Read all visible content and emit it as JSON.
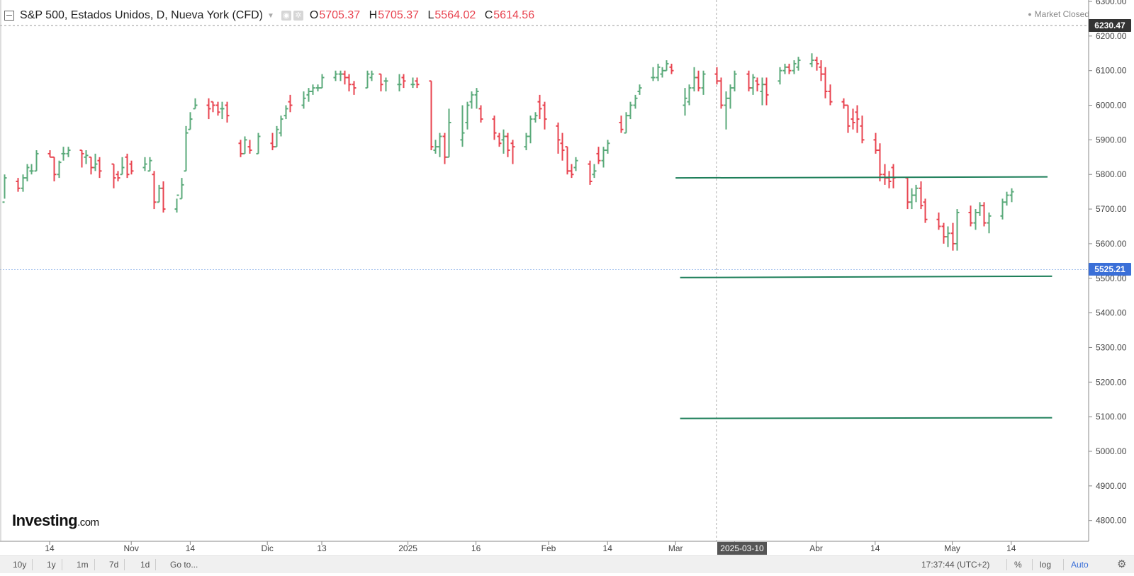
{
  "legend": {
    "title": "S&P 500, Estados Unidos, D, Nueva York (CFD)",
    "open_label": "O",
    "open_value": "5705.37",
    "high_label": "H",
    "high_value": "5705.37",
    "low_label": "L",
    "low_value": "5564.02",
    "close_label": "C",
    "close_value": "5614.56"
  },
  "market_status": "Market Closed",
  "logo": {
    "name": "Investing",
    "suffix": ".com"
  },
  "price_tags": {
    "top": "6230.47",
    "current": "5525.21"
  },
  "crosshair_date": "2025-03-10",
  "bottom_bar": {
    "ranges": [
      "10y",
      "1y",
      "1m",
      "7d",
      "1d"
    ],
    "goto": "Go to...",
    "clock": "17:37:44 (UTC+2)",
    "percent": "%",
    "log": "log",
    "auto": "Auto"
  },
  "colors": {
    "up": "#5aaa7a",
    "down": "#e8434f",
    "trendline": "#1e7f5a",
    "accent": "#3a6fd8"
  },
  "chart_data": {
    "type": "ohlc",
    "title": "S&P 500, Estados Unidos, D, Nueva York (CFD)",
    "ylim": [
      4740,
      6300
    ],
    "y_ticks": [
      6300,
      6200,
      6100,
      6000,
      5900,
      5800,
      5700,
      5600,
      5500,
      5400,
      5300,
      5200,
      5100,
      5000,
      4900,
      4800
    ],
    "y_tick_labels": [
      "6300.00",
      "6200.00",
      "6100.00",
      "6000.00",
      "5900.00",
      "5800.00",
      "5700.00",
      "5600.00",
      "5500.00",
      "5400.00",
      "5300.00",
      "5200.00",
      "5100.00",
      "5000.00",
      "4900.00",
      "4800.00"
    ],
    "x_ticks": [
      {
        "label": "14",
        "date": "2024-10-14"
      },
      {
        "label": "Nov",
        "date": "2024-11-01"
      },
      {
        "label": "14",
        "date": "2024-11-14"
      },
      {
        "label": "Dic",
        "date": "2024-12-01"
      },
      {
        "label": "13",
        "date": "2024-12-13"
      },
      {
        "label": "2025",
        "date": "2025-01-01"
      },
      {
        "label": "16",
        "date": "2025-01-16"
      },
      {
        "label": "Feb",
        "date": "2025-02-01"
      },
      {
        "label": "14",
        "date": "2025-02-14"
      },
      {
        "label": "Mar",
        "date": "2025-03-01"
      },
      {
        "label": "14",
        "date": "2025-03-14"
      },
      {
        "label": "Abr",
        "date": "2025-04-01"
      },
      {
        "label": "14",
        "date": "2025-04-14"
      },
      {
        "label": "May",
        "date": "2025-05-01"
      },
      {
        "label": "14",
        "date": "2025-05-14"
      }
    ],
    "bars": [
      [
        "2024-10-04",
        5720,
        5800,
        5730,
        5790
      ],
      [
        "2024-10-07",
        5780,
        5790,
        5750,
        5760
      ],
      [
        "2024-10-08",
        5760,
        5800,
        5750,
        5790
      ],
      [
        "2024-10-09",
        5790,
        5830,
        5780,
        5820
      ],
      [
        "2024-10-10",
        5810,
        5830,
        5800,
        5810
      ],
      [
        "2024-10-11",
        5810,
        5870,
        5810,
        5860
      ],
      [
        "2024-10-14",
        5860,
        5870,
        5850,
        5850
      ],
      [
        "2024-10-15",
        5850,
        5850,
        5780,
        5800
      ],
      [
        "2024-10-16",
        5800,
        5840,
        5790,
        5835
      ],
      [
        "2024-10-17",
        5860,
        5880,
        5840,
        5860
      ],
      [
        "2024-10-18",
        5860,
        5880,
        5850,
        5870
      ],
      [
        "2024-10-21",
        5870,
        5870,
        5820,
        5860
      ],
      [
        "2024-10-22",
        5850,
        5870,
        5830,
        5855
      ],
      [
        "2024-10-23",
        5850,
        5850,
        5800,
        5820
      ],
      [
        "2024-10-24",
        5820,
        5860,
        5810,
        5830
      ],
      [
        "2024-10-25",
        5840,
        5850,
        5790,
        5810
      ],
      [
        "2024-10-28",
        5830,
        5830,
        5760,
        5790
      ],
      [
        "2024-10-29",
        5800,
        5810,
        5780,
        5790
      ],
      [
        "2024-10-30",
        5800,
        5850,
        5800,
        5820
      ],
      [
        "2024-10-31",
        5850,
        5860,
        5790,
        5800
      ],
      [
        "2024-11-01",
        5830,
        5840,
        5800,
        5810
      ],
      [
        "2024-11-04",
        5820,
        5850,
        5810,
        5830
      ],
      [
        "2024-11-05",
        5810,
        5850,
        5810,
        5840
      ],
      [
        "2024-11-06",
        5800,
        5810,
        5700,
        5720
      ],
      [
        "2024-11-07",
        5720,
        5770,
        5720,
        5760
      ],
      [
        "2024-11-08",
        5760,
        5780,
        5690,
        5700
      ],
      [
        "2024-11-11",
        5700,
        5730,
        5690,
        5740
      ],
      [
        "2024-11-12",
        5730,
        5790,
        5730,
        5770
      ],
      [
        "2024-11-13",
        5810,
        5940,
        5810,
        5920
      ],
      [
        "2024-11-14",
        5930,
        5980,
        5930,
        5960
      ],
      [
        "2024-11-15",
        5990,
        6020,
        5990,
        6000
      ],
      [
        "2024-11-18",
        6000,
        6020,
        5960,
        5990
      ],
      [
        "2024-11-19",
        6010,
        6010,
        5980,
        6000
      ],
      [
        "2024-11-20",
        6000,
        6010,
        5970,
        5980
      ],
      [
        "2024-11-21",
        5990,
        6010,
        5960,
        5990
      ],
      [
        "2024-11-22",
        6000,
        6010,
        5950,
        5970
      ],
      [
        "2024-11-25",
        5890,
        5900,
        5850,
        5860
      ],
      [
        "2024-11-26",
        5860,
        5910,
        5860,
        5900
      ],
      [
        "2024-11-27",
        5880,
        5900,
        5860,
        5870
      ],
      [
        "2024-11-29",
        5860,
        5920,
        5860,
        5910
      ],
      [
        "2024-12-02",
        5890,
        5920,
        5870,
        5880
      ],
      [
        "2024-12-03",
        5880,
        5940,
        5880,
        5930
      ],
      [
        "2024-12-04",
        5920,
        5970,
        5910,
        5960
      ],
      [
        "2024-12-05",
        5970,
        6000,
        5960,
        5990
      ],
      [
        "2024-12-06",
        6010,
        6030,
        5980,
        6000
      ],
      [
        "2024-12-09",
        6000,
        6040,
        5990,
        6020
      ],
      [
        "2024-12-10",
        6030,
        6050,
        6010,
        6040
      ],
      [
        "2024-12-11",
        6040,
        6060,
        6030,
        6050
      ],
      [
        "2024-12-12",
        6050,
        6060,
        6040,
        6050
      ],
      [
        "2024-12-13",
        6050,
        6090,
        6050,
        6080
      ],
      [
        "2024-12-16",
        6080,
        6100,
        6070,
        6090
      ],
      [
        "2024-12-17",
        6090,
        6100,
        6070,
        6090
      ],
      [
        "2024-12-18",
        6090,
        6100,
        6060,
        6080
      ],
      [
        "2024-12-19",
        6080,
        6090,
        6040,
        6060
      ],
      [
        "2024-12-20",
        6060,
        6070,
        6030,
        6050
      ],
      [
        "2024-12-23",
        6050,
        6100,
        6050,
        6090
      ],
      [
        "2024-12-24",
        6080,
        6100,
        6070,
        6090
      ],
      [
        "2024-12-26",
        6090,
        6090,
        6040,
        6060
      ],
      [
        "2024-12-27",
        6070,
        6080,
        6040,
        6070
      ],
      [
        "2024-12-30",
        6060,
        6090,
        6040,
        6060
      ],
      [
        "2024-12-31",
        6080,
        6090,
        6050,
        6070
      ],
      [
        "2025-01-02",
        6060,
        6080,
        6050,
        6060
      ],
      [
        "2025-01-03",
        6070,
        6080,
        6050,
        6060
      ],
      [
        "2025-01-06",
        6070,
        6070,
        5870,
        5880
      ],
      [
        "2025-01-07",
        5870,
        5900,
        5860,
        5880
      ],
      [
        "2025-01-08",
        5880,
        5920,
        5850,
        5910
      ],
      [
        "2025-01-09",
        5910,
        5920,
        5830,
        5850
      ],
      [
        "2025-01-10",
        5850,
        5990,
        5850,
        5950
      ],
      [
        "2025-01-13",
        5900,
        6000,
        5880,
        5920
      ],
      [
        "2025-01-14",
        5950,
        6010,
        5930,
        6000
      ],
      [
        "2025-01-15",
        6010,
        6040,
        5990,
        6030
      ],
      [
        "2025-01-16",
        6030,
        6050,
        5990,
        6040
      ],
      [
        "2025-01-17",
        5990,
        6000,
        5950,
        5960
      ],
      [
        "2025-01-20",
        5960,
        5970,
        5900,
        5920
      ],
      [
        "2025-01-21",
        5910,
        5920,
        5880,
        5890
      ],
      [
        "2025-01-22",
        5900,
        5930,
        5860,
        5910
      ],
      [
        "2025-01-23",
        5910,
        5920,
        5850,
        5870
      ],
      [
        "2025-01-24",
        5890,
        5900,
        5830,
        5880
      ],
      [
        "2025-01-27",
        5880,
        5920,
        5870,
        5910
      ],
      [
        "2025-01-28",
        5910,
        5970,
        5890,
        5960
      ],
      [
        "2025-01-29",
        5960,
        5980,
        5950,
        5970
      ],
      [
        "2025-01-30",
        6010,
        6030,
        5960,
        5990
      ],
      [
        "2025-01-31",
        6000,
        6010,
        5930,
        5960
      ],
      [
        "2025-02-03",
        5940,
        5950,
        5860,
        5900
      ],
      [
        "2025-02-04",
        5890,
        5920,
        5840,
        5870
      ],
      [
        "2025-02-05",
        5880,
        5880,
        5800,
        5810
      ],
      [
        "2025-02-06",
        5810,
        5830,
        5790,
        5800
      ],
      [
        "2025-02-07",
        5820,
        5850,
        5810,
        5840
      ],
      [
        "2025-02-10",
        5830,
        5840,
        5770,
        5780
      ],
      [
        "2025-02-11",
        5800,
        5830,
        5790,
        5810
      ],
      [
        "2025-02-12",
        5860,
        5880,
        5830,
        5840
      ],
      [
        "2025-02-13",
        5840,
        5880,
        5820,
        5870
      ],
      [
        "2025-02-14",
        5870,
        5900,
        5860,
        5890
      ],
      [
        "2025-02-17",
        5950,
        5970,
        5920,
        5930
      ],
      [
        "2025-02-18",
        5920,
        5980,
        5920,
        5970
      ],
      [
        "2025-02-19",
        5970,
        6010,
        5960,
        6000
      ],
      [
        "2025-02-20",
        6000,
        6030,
        5990,
        6020
      ],
      [
        "2025-02-21",
        6040,
        6060,
        6030,
        6050
      ],
      [
        "2025-02-24",
        6080,
        6110,
        6070,
        6080
      ],
      [
        "2025-02-25",
        6080,
        6120,
        6070,
        6110
      ],
      [
        "2025-02-26",
        6090,
        6110,
        6080,
        6100
      ],
      [
        "2025-02-27",
        6100,
        6130,
        6100,
        6120
      ],
      [
        "2025-02-28",
        6110,
        6120,
        6090,
        6100
      ],
      [
        "2025-03-03",
        6000,
        6050,
        5970,
        6020
      ],
      [
        "2025-03-04",
        6010,
        6060,
        6000,
        6050
      ],
      [
        "2025-03-05",
        6050,
        6110,
        6040,
        6080
      ],
      [
        "2025-03-06",
        6080,
        6100,
        6040,
        6050
      ],
      [
        "2025-03-07",
        6050,
        6100,
        6030,
        6090
      ],
      [
        "2025-03-10",
        6090,
        6110,
        6060,
        6070
      ],
      [
        "2025-03-11",
        6070,
        6080,
        5990,
        6000
      ],
      [
        "2025-03-12",
        6000,
        6040,
        5930,
        6020
      ],
      [
        "2025-03-13",
        6020,
        6060,
        5990,
        6050
      ],
      [
        "2025-03-14",
        6050,
        6100,
        6040,
        6090
      ],
      [
        "2025-03-17",
        6090,
        6100,
        6040,
        6050
      ],
      [
        "2025-03-18",
        6050,
        6090,
        6030,
        6080
      ],
      [
        "2025-03-19",
        6070,
        6080,
        6040,
        6060
      ],
      [
        "2025-03-20",
        6040,
        6080,
        6000,
        6060
      ],
      [
        "2025-03-21",
        6060,
        6080,
        6000,
        6030
      ],
      [
        "2025-03-24",
        6070,
        6110,
        6060,
        6100
      ],
      [
        "2025-03-25",
        6100,
        6120,
        6090,
        6110
      ],
      [
        "2025-03-26",
        6110,
        6120,
        6090,
        6100
      ],
      [
        "2025-03-27",
        6100,
        6130,
        6090,
        6120
      ],
      [
        "2025-03-28",
        6110,
        6140,
        6100,
        6130
      ],
      [
        "2025-03-31",
        6120,
        6150,
        6110,
        6130
      ],
      [
        "2025-04-01",
        6130,
        6140,
        6100,
        6120
      ],
      [
        "2025-04-02",
        6110,
        6130,
        6070,
        6090
      ],
      [
        "2025-04-03",
        6090,
        6110,
        6020,
        6040
      ],
      [
        "2025-04-04",
        6040,
        6060,
        6000,
        6010
      ],
      [
        "2025-04-07",
        6010,
        6020,
        5990,
        6000
      ],
      [
        "2025-04-08",
        6000,
        6000,
        5920,
        5940
      ],
      [
        "2025-04-09",
        5960,
        5990,
        5930,
        5950
      ],
      [
        "2025-04-10",
        5980,
        6000,
        5920,
        5960
      ],
      [
        "2025-04-11",
        5940,
        5970,
        5890,
        5900
      ],
      [
        "2025-04-14",
        5900,
        5920,
        5860,
        5870
      ],
      [
        "2025-04-15",
        5870,
        5890,
        5780,
        5800
      ],
      [
        "2025-04-16",
        5800,
        5830,
        5770,
        5790
      ],
      [
        "2025-04-17",
        5790,
        5810,
        5760,
        5780
      ],
      [
        "2025-04-18",
        5820,
        5830,
        5760,
        5790
      ],
      [
        "2025-04-21",
        5790,
        5790,
        5700,
        5720
      ],
      [
        "2025-04-22",
        5720,
        5760,
        5700,
        5740
      ],
      [
        "2025-04-23",
        5740,
        5770,
        5720,
        5760
      ],
      [
        "2025-04-24",
        5760,
        5780,
        5700,
        5710
      ],
      [
        "2025-04-25",
        5720,
        5730,
        5660,
        5670
      ],
      [
        "2025-04-28",
        5670,
        5690,
        5640,
        5650
      ],
      [
        "2025-04-29",
        5650,
        5660,
        5600,
        5620
      ],
      [
        "2025-04-30",
        5620,
        5650,
        5590,
        5630
      ],
      [
        "2025-05-01",
        5630,
        5660,
        5580,
        5600
      ],
      [
        "2025-05-02",
        5600,
        5700,
        5580,
        5690
      ],
      [
        "2025-05-05",
        5690,
        5710,
        5650,
        5660
      ],
      [
        "2025-05-06",
        5660,
        5700,
        5640,
        5690
      ],
      [
        "2025-05-07",
        5690,
        5720,
        5680,
        5710
      ],
      [
        "2025-05-08",
        5710,
        5720,
        5650,
        5660
      ],
      [
        "2025-05-09",
        5660,
        5690,
        5630,
        5680
      ],
      [
        "2025-05-12",
        5680,
        5730,
        5670,
        5720
      ],
      [
        "2025-05-13",
        5720,
        5750,
        5710,
        5740
      ],
      [
        "2025-05-14",
        5740,
        5760,
        5720,
        5750
      ]
    ],
    "trendlines": [
      {
        "start": [
          "2025-03-01",
          5790
        ],
        "end": [
          "2025-05-22",
          5793
        ]
      },
      {
        "start": [
          "2025-03-02",
          5502
        ],
        "end": [
          "2025-05-23",
          5506
        ]
      },
      {
        "start": [
          "2025-03-02",
          5095
        ],
        "end": [
          "2025-05-23",
          5097
        ]
      }
    ],
    "reference_lines": [
      6230.47,
      5525.21
    ],
    "crosshair": {
      "date": "2025-03-10"
    }
  }
}
